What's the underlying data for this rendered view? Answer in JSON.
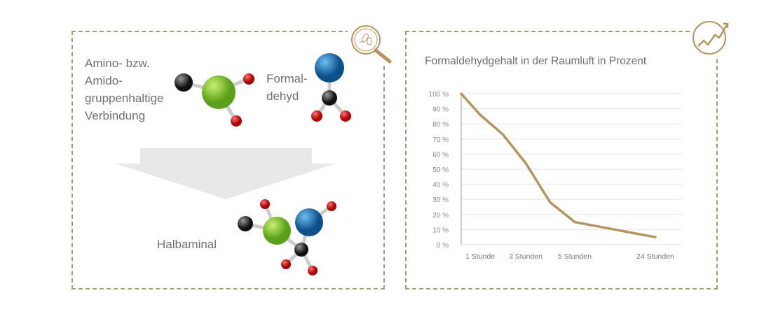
{
  "left_panel": {
    "compound_label_lines": [
      "Amino- bzw.",
      "Amido-",
      "gruppenhaltige",
      "Verbindung"
    ],
    "formaldehyde_label_lines": [
      "Formal-",
      "dehyd"
    ],
    "product_label": "Halbaminal",
    "icon": "magnifier-bacteria-icon"
  },
  "right_panel": {
    "icon": "trend-chart-icon"
  },
  "colors": {
    "accent": "#b5955e",
    "border": "#a89a6a",
    "green_atom": "#7cc42a",
    "blue_atom": "#1a72b8",
    "red_atom": "#d42020",
    "black_atom": "#333333"
  },
  "chart_data": {
    "type": "line",
    "title": "Formaldehydgehalt in der Raumluft in Prozent",
    "x_tick_labels": [
      "1 Stunde",
      "3 Stunden",
      "5 Stunden",
      "24 Stunden"
    ],
    "x_tick_hours": [
      1,
      3,
      5,
      24
    ],
    "y_tick_labels": [
      "0 %",
      "10 %",
      "20 %",
      "30 %",
      "40 %",
      "50 %",
      "60 %",
      "70 %",
      "80 %",
      "90 %",
      "100 %"
    ],
    "ylim": [
      0,
      100
    ],
    "grid": true,
    "series": [
      {
        "points": [
          [
            0,
            100
          ],
          [
            1,
            86
          ],
          [
            2,
            73
          ],
          [
            3,
            54
          ],
          [
            4,
            28
          ],
          [
            5,
            15
          ],
          [
            24,
            5
          ]
        ]
      }
    ]
  }
}
